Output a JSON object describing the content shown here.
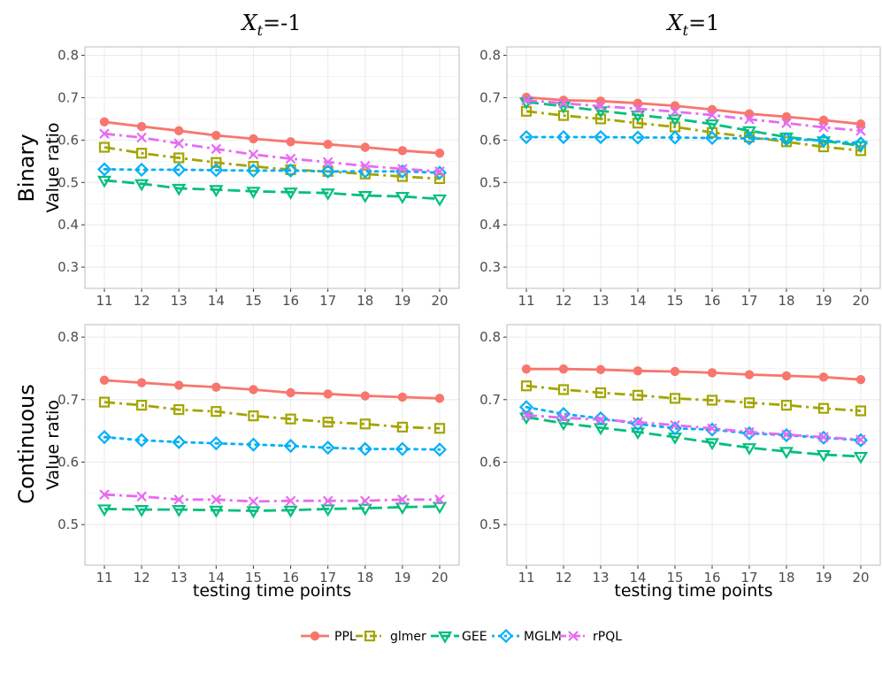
{
  "column_titles": [
    {
      "var": "X",
      "sub": "t",
      "rest": "=-1"
    },
    {
      "var": "X",
      "sub": "t",
      "rest": "=1"
    }
  ],
  "row_titles": [
    "Binary",
    "Continuous"
  ],
  "colors": {
    "PPL": "#F8766D",
    "glmer": "#A3A500",
    "GEE": "#00BF7D",
    "MGLM": "#00B0F6",
    "rPQL": "#E76BF3"
  },
  "legend": [
    "PPL",
    "glmer",
    "GEE",
    "MGLM",
    "rPQL"
  ],
  "chart_data": [
    {
      "type": "line",
      "title": "",
      "ylabel": "Value ratio",
      "xlabel": "",
      "x": [
        11,
        12,
        13,
        14,
        15,
        16,
        17,
        18,
        19,
        20
      ],
      "ylim": [
        0.25,
        0.82
      ],
      "yticks": [
        0.3,
        0.4,
        0.5,
        0.6,
        0.7,
        0.8
      ],
      "series": [
        {
          "name": "PPL",
          "values": [
            0.643,
            0.632,
            0.622,
            0.611,
            0.603,
            0.596,
            0.59,
            0.583,
            0.575,
            0.569
          ]
        },
        {
          "name": "glmer",
          "values": [
            0.583,
            0.569,
            0.558,
            0.547,
            0.538,
            0.53,
            0.526,
            0.52,
            0.514,
            0.509
          ]
        },
        {
          "name": "GEE",
          "values": [
            0.505,
            0.497,
            0.486,
            0.483,
            0.479,
            0.477,
            0.475,
            0.469,
            0.467,
            0.461
          ]
        },
        {
          "name": "MGLM",
          "values": [
            0.531,
            0.53,
            0.53,
            0.529,
            0.528,
            0.528,
            0.526,
            0.526,
            0.526,
            0.523
          ]
        },
        {
          "name": "rPQL",
          "values": [
            0.615,
            0.606,
            0.592,
            0.579,
            0.566,
            0.556,
            0.548,
            0.539,
            0.532,
            0.526
          ]
        }
      ]
    },
    {
      "type": "line",
      "title": "",
      "ylabel": "",
      "xlabel": "",
      "x": [
        11,
        12,
        13,
        14,
        15,
        16,
        17,
        18,
        19,
        20
      ],
      "ylim": [
        0.25,
        0.82
      ],
      "yticks": [
        0.3,
        0.4,
        0.5,
        0.6,
        0.7,
        0.8
      ],
      "series": [
        {
          "name": "PPL",
          "values": [
            0.701,
            0.694,
            0.692,
            0.687,
            0.681,
            0.672,
            0.662,
            0.655,
            0.647,
            0.638
          ]
        },
        {
          "name": "glmer",
          "values": [
            0.668,
            0.658,
            0.65,
            0.64,
            0.631,
            0.618,
            0.607,
            0.596,
            0.584,
            0.575
          ]
        },
        {
          "name": "GEE",
          "values": [
            0.69,
            0.68,
            0.669,
            0.659,
            0.65,
            0.638,
            0.622,
            0.607,
            0.598,
            0.587
          ]
        },
        {
          "name": "MGLM",
          "values": [
            0.607,
            0.607,
            0.607,
            0.606,
            0.606,
            0.605,
            0.604,
            0.602,
            0.599,
            0.592
          ]
        },
        {
          "name": "rPQL",
          "values": [
            0.694,
            0.687,
            0.68,
            0.674,
            0.667,
            0.659,
            0.649,
            0.64,
            0.63,
            0.622
          ]
        }
      ]
    },
    {
      "type": "line",
      "title": "",
      "ylabel": "Value ratio",
      "xlabel": "testing time points",
      "x": [
        11,
        12,
        13,
        14,
        15,
        16,
        17,
        18,
        19,
        20
      ],
      "ylim": [
        0.435,
        0.82
      ],
      "yticks": [
        0.5,
        0.6,
        0.7,
        0.8
      ],
      "series": [
        {
          "name": "PPL",
          "values": [
            0.731,
            0.727,
            0.723,
            0.72,
            0.716,
            0.711,
            0.709,
            0.706,
            0.704,
            0.702
          ]
        },
        {
          "name": "glmer",
          "values": [
            0.696,
            0.691,
            0.684,
            0.681,
            0.674,
            0.669,
            0.664,
            0.661,
            0.656,
            0.654
          ]
        },
        {
          "name": "GEE",
          "values": [
            0.525,
            0.524,
            0.524,
            0.523,
            0.522,
            0.523,
            0.525,
            0.526,
            0.528,
            0.529
          ]
        },
        {
          "name": "MGLM",
          "values": [
            0.64,
            0.635,
            0.632,
            0.63,
            0.628,
            0.626,
            0.623,
            0.621,
            0.621,
            0.62
          ]
        },
        {
          "name": "rPQL",
          "values": [
            0.548,
            0.545,
            0.54,
            0.54,
            0.537,
            0.538,
            0.538,
            0.538,
            0.54,
            0.54
          ]
        }
      ]
    },
    {
      "type": "line",
      "title": "",
      "ylabel": "",
      "xlabel": "testing time points",
      "x": [
        11,
        12,
        13,
        14,
        15,
        16,
        17,
        18,
        19,
        20
      ],
      "ylim": [
        0.435,
        0.82
      ],
      "yticks": [
        0.5,
        0.6,
        0.7,
        0.8
      ],
      "series": [
        {
          "name": "PPL",
          "values": [
            0.749,
            0.749,
            0.748,
            0.746,
            0.745,
            0.743,
            0.74,
            0.738,
            0.736,
            0.732
          ]
        },
        {
          "name": "glmer",
          "values": [
            0.722,
            0.716,
            0.711,
            0.707,
            0.702,
            0.699,
            0.695,
            0.691,
            0.686,
            0.682
          ]
        },
        {
          "name": "GEE",
          "values": [
            0.672,
            0.662,
            0.655,
            0.648,
            0.64,
            0.631,
            0.623,
            0.617,
            0.612,
            0.609
          ]
        },
        {
          "name": "MGLM",
          "values": [
            0.688,
            0.677,
            0.67,
            0.661,
            0.654,
            0.652,
            0.646,
            0.643,
            0.639,
            0.635
          ]
        },
        {
          "name": "rPQL",
          "values": [
            0.675,
            0.671,
            0.668,
            0.664,
            0.659,
            0.654,
            0.648,
            0.644,
            0.64,
            0.636
          ]
        }
      ]
    }
  ]
}
